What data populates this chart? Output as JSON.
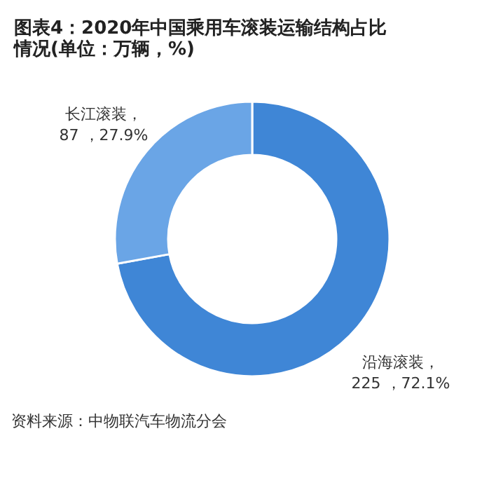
{
  "chart_data": {
    "type": "donut",
    "title": "图表4：2020年中国乘用车滚装运输结构占比情况(单位：万辆，%)",
    "categories": [
      "沿海滚装",
      "长江滚装"
    ],
    "values": [
      225,
      87
    ],
    "value_labels": [
      "，\n225 ，72.1%",
      "，\n87 ，27.9%"
    ],
    "colors": [
      "#3f86d6",
      "#6aa5e6"
    ],
    "annotations": [
      "资料来源：中物联汽车物流分会"
    ]
  }
}
